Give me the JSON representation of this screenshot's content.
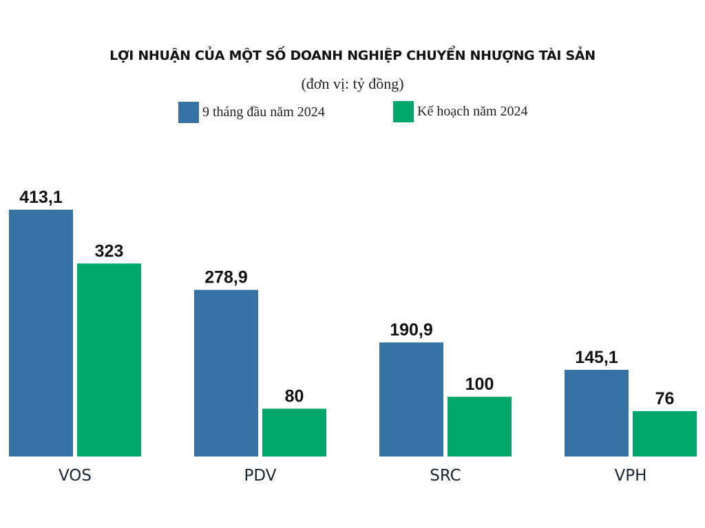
{
  "chart_data": {
    "type": "bar",
    "title": "LỢI NHUẬN CỦA MỘT SỐ DOANH NGHIỆP CHUYỂN NHƯỢNG TÀI SẢN",
    "subtitle": "(đơn vị: tỷ đồng)",
    "xlabel": "",
    "ylabel": "",
    "ylim": [
      0,
      413.1
    ],
    "grid": false,
    "legend_position": "top-center",
    "categories": [
      "VOS",
      "PDV",
      "SRC",
      "VPH"
    ],
    "series": [
      {
        "name": "9 tháng đầu năm 2024",
        "color": "#3673a4",
        "values": [
          413.1,
          278.9,
          190.9,
          145.1
        ],
        "labels": [
          "413,1",
          "278,9",
          "190,9",
          "145,1"
        ]
      },
      {
        "name": "Kế hoạch năm 2024",
        "color": "#00a66a",
        "values": [
          323,
          80,
          100,
          76
        ],
        "labels": [
          "323",
          "80",
          "100",
          "76"
        ]
      }
    ]
  }
}
